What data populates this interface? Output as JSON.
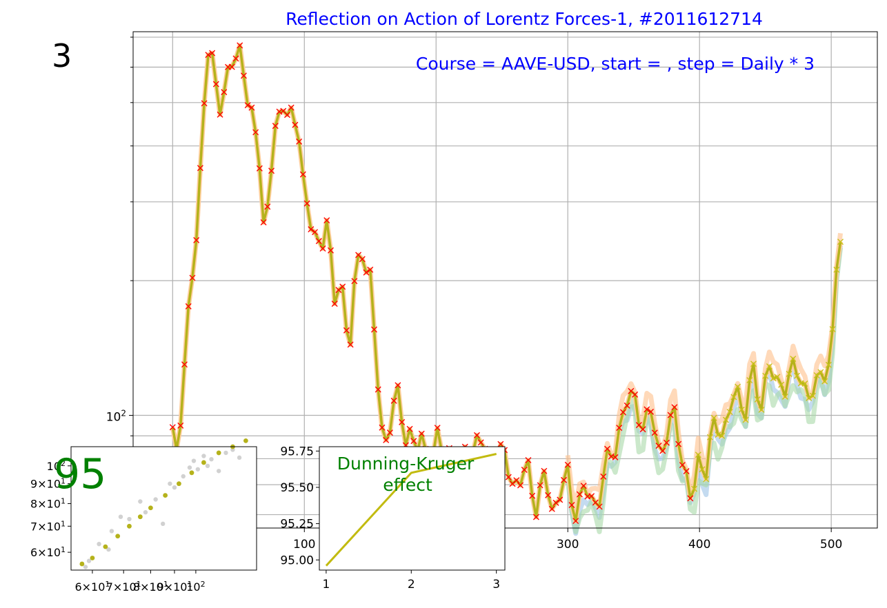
{
  "corner_number": "3",
  "chart_data": [
    {
      "type": "line",
      "title": "Reflection on Action of Lorentz Forces-1, #2011612714",
      "subtitle": "Course = AAVE-USD, start = , step = Daily * 3",
      "xlabel": "",
      "ylabel": "",
      "xlim": [
        -30,
        535
      ],
      "ylim": [
        56,
        720
      ],
      "yscale": "log",
      "grid": true,
      "x_ticks": [
        100,
        300,
        400,
        500
      ],
      "y_ticks": [
        {
          "value": 100,
          "label": "10²"
        }
      ],
      "colors": {
        "main": "#b5b21b",
        "marker": "#ff0000",
        "orange_band": "#ffc08a",
        "blue_band": "#9dc3e6",
        "green_band": "#a8d8a8",
        "yellow_marker": "#c8c21a"
      },
      "anchors_x": [
        0,
        3,
        8,
        14,
        18,
        26,
        30,
        33,
        37,
        45,
        52,
        58,
        62,
        66,
        70,
        74,
        78,
        84,
        88,
        92,
        96,
        102,
        106,
        112,
        118,
        122,
        128,
        134,
        138,
        145,
        150,
        155,
        160,
        165,
        170,
        176,
        180,
        186,
        190,
        196,
        200,
        206,
        212,
        218,
        224,
        230,
        236,
        240,
        246,
        252,
        258,
        264,
        270,
        276,
        282,
        288,
        294,
        300,
        304,
        310,
        316,
        322,
        328,
        334,
        340,
        346,
        352,
        358,
        364,
        370,
        376,
        382,
        388,
        394,
        400,
        404,
        410,
        416,
        422,
        428,
        434,
        440,
        446,
        452,
        458,
        464,
        470,
        476,
        482,
        488,
        494,
        500,
        504,
        508
      ],
      "anchors_y": [
        91,
        88,
        115,
        190,
        260,
        630,
        600,
        560,
        510,
        590,
        700,
        460,
        430,
        390,
        250,
        320,
        430,
        520,
        480,
        420,
        430,
        300,
        250,
        230,
        310,
        160,
        210,
        140,
        190,
        240,
        210,
        120,
        85,
        100,
        110,
        90,
        95,
        82,
        86,
        80,
        89,
        78,
        90,
        75,
        85,
        88,
        83,
        80,
        83,
        78,
        74,
        70,
        75,
        65,
        70,
        63,
        68,
        71,
        62,
        68,
        64,
        65,
        75,
        80,
        100,
        105,
        110,
        95,
        98,
        85,
        90,
        100,
        80,
        60,
        85,
        75,
        90,
        95,
        100,
        110,
        105,
        125,
        100,
        140,
        110,
        120,
        130,
        115,
        120,
        110,
        125,
        140,
        210,
        240
      ]
    },
    {
      "type": "scatter",
      "label": "95",
      "xscale": "log",
      "yscale": "log",
      "xlim": [
        54,
        135
      ],
      "ylim": [
        54,
        112
      ],
      "x_tick_labels": [
        "6×10¹",
        "7×10¹",
        "8×10¹",
        "9×10¹",
        "10²"
      ],
      "y_tick_labels": [
        "6×10¹",
        "7×10¹",
        "8×10¹",
        "9×10¹",
        "10²"
      ],
      "line_points": [
        [
          57,
          56
        ],
        [
          60,
          58
        ],
        [
          64,
          62
        ],
        [
          68,
          66
        ],
        [
          72,
          70
        ],
        [
          76,
          74
        ],
        [
          80,
          78
        ],
        [
          86,
          84
        ],
        [
          92,
          90
        ],
        [
          98,
          96
        ],
        [
          104,
          102
        ],
        [
          112,
          108
        ],
        [
          120,
          112
        ],
        [
          128,
          116
        ]
      ],
      "scatter_points": [
        [
          58,
          55
        ],
        [
          59,
          57
        ],
        [
          62,
          63
        ],
        [
          65,
          61
        ],
        [
          66,
          68
        ],
        [
          69,
          74
        ],
        [
          72,
          73
        ],
        [
          76,
          81
        ],
        [
          78,
          76
        ],
        [
          82,
          82
        ],
        [
          85,
          71
        ],
        [
          88,
          90
        ],
        [
          90,
          88
        ],
        [
          94,
          94
        ],
        [
          97,
          99
        ],
        [
          99,
          103
        ],
        [
          101,
          98
        ],
        [
          104,
          106
        ],
        [
          106,
          100
        ],
        [
          108,
          104
        ],
        [
          112,
          97
        ],
        [
          116,
          108
        ],
        [
          120,
          110
        ],
        [
          124,
          105
        ]
      ]
    },
    {
      "type": "line",
      "label": "Dunning-Kruger effect",
      "x": [
        1,
        2,
        3
      ],
      "values": [
        94.96,
        95.6,
        95.73
      ],
      "xlim": [
        0.92,
        3.1
      ],
      "ylim": [
        94.93,
        95.78
      ],
      "x_ticks": [
        1,
        2,
        3
      ],
      "y_ticks": [
        95.0,
        95.25,
        95.5,
        95.75
      ],
      "y_tick_labels": [
        "95.00",
        "95.25",
        "95.50",
        "95.75"
      ]
    }
  ]
}
